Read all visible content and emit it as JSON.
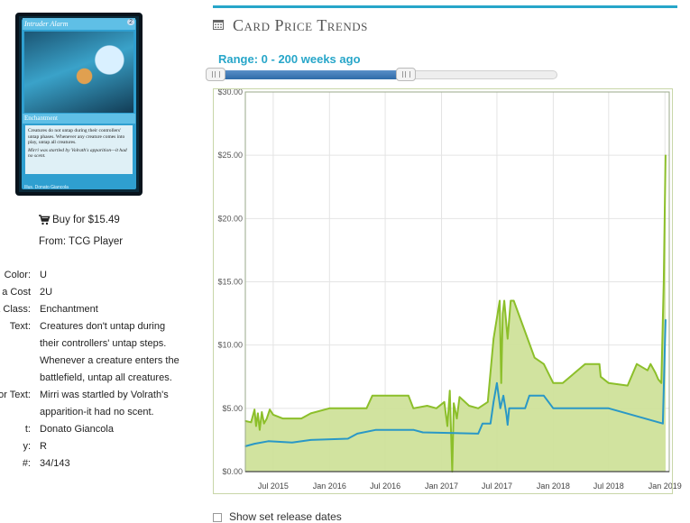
{
  "card": {
    "name": "Intruder Alarm",
    "mana_symbols": "2",
    "type_line": "Enchantment",
    "rules_text": "Creatures do not untap during their controllers' untap phases. Whenever any creature comes into play, untap all creatures.",
    "flavor_text": "Mirri was startled by Volrath's apparition—it had no scent.",
    "credit": "Illus. Donato Giancola"
  },
  "buy": {
    "link_text": "Buy for $15.49",
    "from_text": "From: TCG Player",
    "icon": "cart-icon"
  },
  "info": [
    {
      "label": "Color:",
      "value": [
        "U"
      ]
    },
    {
      "label": "a Cost",
      "value": [
        "2U"
      ]
    },
    {
      "label": "& Class:",
      "value": [
        "Enchantment"
      ]
    },
    {
      "label": "Text:",
      "value": [
        "Creatures don't untap during",
        "their controllers' untap steps.",
        "Whenever a creature enters the",
        "battlefield, untap all creatures."
      ]
    },
    {
      "label": "or Text:",
      "value": [
        "Mirri was startled by Volrath's",
        "apparition-it had no scent."
      ]
    },
    {
      "label": "t:",
      "value": [
        "Donato Giancola"
      ]
    },
    {
      "label": "y:",
      "value": [
        "R"
      ]
    },
    {
      "label": "#:",
      "value": [
        "34/143"
      ]
    }
  ],
  "panel": {
    "title": "Card Price Trends",
    "title_icon": "calendar-icon",
    "range_label": "Range: 0 - 200 weeks ago",
    "release_label": "Show set release dates",
    "accent_color": "#27a6c9"
  },
  "chart_data": {
    "type": "area",
    "ylim": [
      0,
      30
    ],
    "yticks": [
      "$0.00",
      "$5.00",
      "$10.00",
      "$15.00",
      "$20.00",
      "$25.00",
      "$30.00"
    ],
    "xlim": [
      "2015-04-01",
      "2019-01-15"
    ],
    "xticks": [
      {
        "date": "2015-07-01",
        "label": "Jul 2015"
      },
      {
        "date": "2016-01-01",
        "label": "Jan 2016"
      },
      {
        "date": "2016-07-01",
        "label": "Jul 2016"
      },
      {
        "date": "2017-01-01",
        "label": "Jan 2017"
      },
      {
        "date": "2017-07-01",
        "label": "Jul 2017"
      },
      {
        "date": "2018-01-01",
        "label": "Jan 2018"
      },
      {
        "date": "2018-07-01",
        "label": "Jul 2018"
      },
      {
        "date": "2019-01-01",
        "label": "Jan 2019"
      }
    ],
    "grid": true,
    "series": [
      {
        "color": "#8cbf2a",
        "fill": "#cfe29a",
        "points": [
          [
            "2015-04-01",
            4.0
          ],
          [
            "2015-04-20",
            3.9
          ],
          [
            "2015-05-01",
            4.9
          ],
          [
            "2015-05-06",
            3.6
          ],
          [
            "2015-05-12",
            4.6
          ],
          [
            "2015-05-18",
            3.3
          ],
          [
            "2015-05-25",
            4.7
          ],
          [
            "2015-06-01",
            3.8
          ],
          [
            "2015-06-10",
            4.2
          ],
          [
            "2015-06-20",
            4.9
          ],
          [
            "2015-07-01",
            4.5
          ],
          [
            "2015-08-01",
            4.2
          ],
          [
            "2015-10-01",
            4.2
          ],
          [
            "2015-11-01",
            4.6
          ],
          [
            "2016-01-01",
            5.0
          ],
          [
            "2016-05-01",
            5.0
          ],
          [
            "2016-05-20",
            6.0
          ],
          [
            "2016-09-15",
            6.0
          ],
          [
            "2016-10-01",
            5.0
          ],
          [
            "2016-11-15",
            5.2
          ],
          [
            "2016-12-15",
            5.0
          ],
          [
            "2017-01-10",
            5.5
          ],
          [
            "2017-01-20",
            3.6
          ],
          [
            "2017-01-28",
            6.4
          ],
          [
            "2017-02-05",
            0.0
          ],
          [
            "2017-02-10",
            5.4
          ],
          [
            "2017-02-20",
            4.2
          ],
          [
            "2017-03-01",
            5.9
          ],
          [
            "2017-04-01",
            5.2
          ],
          [
            "2017-05-01",
            5.0
          ],
          [
            "2017-06-01",
            5.5
          ],
          [
            "2017-06-20",
            10.5
          ],
          [
            "2017-07-10",
            13.5
          ],
          [
            "2017-07-15",
            7.0
          ],
          [
            "2017-07-20",
            12.5
          ],
          [
            "2017-07-25",
            13.5
          ],
          [
            "2017-08-05",
            10.5
          ],
          [
            "2017-08-15",
            13.5
          ],
          [
            "2017-08-25",
            13.5
          ],
          [
            "2017-11-01",
            9.0
          ],
          [
            "2017-12-01",
            8.5
          ],
          [
            "2018-01-01",
            7.0
          ],
          [
            "2018-02-01",
            7.0
          ],
          [
            "2018-04-15",
            8.5
          ],
          [
            "2018-06-01",
            8.5
          ],
          [
            "2018-06-05",
            7.5
          ],
          [
            "2018-07-01",
            7.0
          ],
          [
            "2018-09-01",
            6.8
          ],
          [
            "2018-10-01",
            8.5
          ],
          [
            "2018-11-05",
            8.0
          ],
          [
            "2018-11-15",
            8.5
          ],
          [
            "2018-12-01",
            7.8
          ],
          [
            "2018-12-10",
            7.3
          ],
          [
            "2018-12-20",
            7.0
          ],
          [
            "2018-12-28",
            15.0
          ],
          [
            "2019-01-03",
            25.0
          ]
        ]
      },
      {
        "color": "#2a98c6",
        "points": [
          [
            "2015-04-01",
            2.0
          ],
          [
            "2015-05-01",
            2.2
          ],
          [
            "2015-06-15",
            2.4
          ],
          [
            "2015-09-01",
            2.3
          ],
          [
            "2015-11-01",
            2.5
          ],
          [
            "2016-03-01",
            2.6
          ],
          [
            "2016-04-01",
            3.0
          ],
          [
            "2016-06-01",
            3.3
          ],
          [
            "2016-10-01",
            3.3
          ],
          [
            "2016-11-01",
            3.1
          ],
          [
            "2017-05-01",
            3.0
          ],
          [
            "2017-05-15",
            3.8
          ],
          [
            "2017-06-10",
            3.8
          ],
          [
            "2017-06-20",
            5.5
          ],
          [
            "2017-07-01",
            7.0
          ],
          [
            "2017-07-12",
            5.0
          ],
          [
            "2017-07-22",
            6.0
          ],
          [
            "2017-08-01",
            4.5
          ],
          [
            "2017-08-05",
            3.7
          ],
          [
            "2017-08-10",
            5.0
          ],
          [
            "2017-10-01",
            5.0
          ],
          [
            "2017-10-15",
            6.0
          ],
          [
            "2017-12-01",
            6.0
          ],
          [
            "2018-01-01",
            5.0
          ],
          [
            "2018-07-01",
            5.0
          ],
          [
            "2018-12-25",
            3.8
          ],
          [
            "2019-01-03",
            12.0
          ]
        ]
      }
    ]
  }
}
